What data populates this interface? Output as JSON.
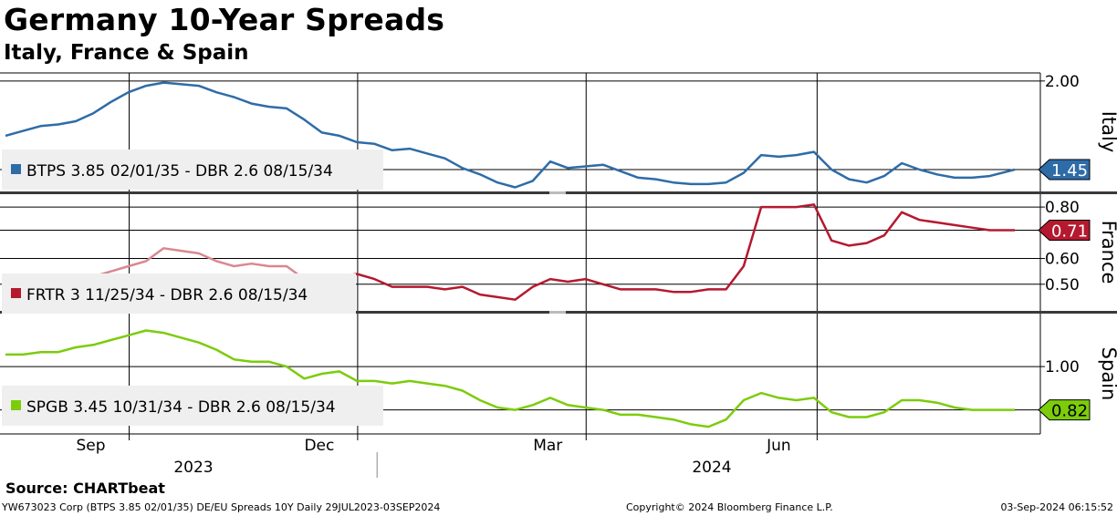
{
  "header": {
    "title": "Germany 10-Year Spreads",
    "subtitle": "Italy, France & Spain"
  },
  "footer": {
    "source": "Source: CHARTbeat",
    "left": "YW673023 Corp (BTPS 3.85 02/01/35) DE/EU Spreads 10Y  Daily 29JUL2023-03SEP2024",
    "middle": "Copyright© 2024 Bloomberg Finance L.P.",
    "right": "03-Sep-2024 06:15:52"
  },
  "colors": {
    "italy": "#2e6ca8",
    "france": "#b5192f",
    "france_faded": "#d98890",
    "spain": "#7ccc0c"
  },
  "chart_data": [
    {
      "type": "line",
      "panel": "Italy",
      "axis_label": "Italy",
      "legend": "BTPS 3.85 02/01/35 - DBR 2.6 08/15/34",
      "last_value_label": "1.45",
      "yticks": [
        "2.00"
      ],
      "ylim": [
        1.32,
        2.05
      ],
      "x": [
        "2023-07-29",
        "2023-08-05",
        "2023-08-12",
        "2023-08-19",
        "2023-08-26",
        "2023-09-02",
        "2023-09-09",
        "2023-09-16",
        "2023-09-23",
        "2023-09-30",
        "2023-10-07",
        "2023-10-14",
        "2023-10-21",
        "2023-10-28",
        "2023-11-04",
        "2023-11-11",
        "2023-11-18",
        "2023-11-25",
        "2023-12-02",
        "2023-12-09",
        "2023-12-16",
        "2023-12-23",
        "2023-12-30",
        "2024-01-06",
        "2024-01-13",
        "2024-01-20",
        "2024-01-27",
        "2024-02-03",
        "2024-02-10",
        "2024-02-17",
        "2024-02-24",
        "2024-03-02",
        "2024-03-09",
        "2024-03-16",
        "2024-03-23",
        "2024-03-30",
        "2024-04-06",
        "2024-04-13",
        "2024-04-20",
        "2024-04-27",
        "2024-05-04",
        "2024-05-11",
        "2024-05-18",
        "2024-05-25",
        "2024-06-01",
        "2024-06-08",
        "2024-06-15",
        "2024-06-22",
        "2024-06-29",
        "2024-07-06",
        "2024-07-13",
        "2024-07-20",
        "2024-07-27",
        "2024-08-03",
        "2024-08-10",
        "2024-08-17",
        "2024-08-24",
        "2024-09-03"
      ],
      "values": [
        1.66,
        1.69,
        1.72,
        1.73,
        1.75,
        1.8,
        1.87,
        1.93,
        1.97,
        1.99,
        1.98,
        1.97,
        1.93,
        1.9,
        1.86,
        1.84,
        1.83,
        1.76,
        1.68,
        1.66,
        1.62,
        1.61,
        1.57,
        1.58,
        1.55,
        1.52,
        1.46,
        1.42,
        1.37,
        1.34,
        1.38,
        1.5,
        1.46,
        1.47,
        1.48,
        1.44,
        1.4,
        1.39,
        1.37,
        1.36,
        1.36,
        1.37,
        1.43,
        1.54,
        1.53,
        1.54,
        1.56,
        1.45,
        1.39,
        1.37,
        1.41,
        1.49,
        1.45,
        1.42,
        1.4,
        1.4,
        1.41,
        1.45
      ]
    },
    {
      "type": "line",
      "panel": "France",
      "axis_label": "France",
      "legend": "FRTR 3 11/25/34 - DBR 2.6 08/15/34",
      "last_value_label": "0.71",
      "yticks": [
        "0.80",
        "0.60",
        "0.50"
      ],
      "ylim": [
        0.4,
        0.85
      ],
      "x": [
        "2023-07-29",
        "2023-08-05",
        "2023-08-12",
        "2023-08-19",
        "2023-08-26",
        "2023-09-02",
        "2023-09-09",
        "2023-09-16",
        "2023-09-23",
        "2023-09-30",
        "2023-10-07",
        "2023-10-14",
        "2023-10-21",
        "2023-10-28",
        "2023-11-04",
        "2023-11-11",
        "2023-11-18",
        "2023-11-25",
        "2023-12-02",
        "2023-12-09",
        "2023-12-16",
        "2023-12-23",
        "2023-12-30",
        "2024-01-06",
        "2024-01-13",
        "2024-01-20",
        "2024-01-27",
        "2024-02-03",
        "2024-02-10",
        "2024-02-17",
        "2024-02-24",
        "2024-03-02",
        "2024-03-09",
        "2024-03-16",
        "2024-03-23",
        "2024-03-30",
        "2024-04-06",
        "2024-04-13",
        "2024-04-20",
        "2024-04-27",
        "2024-05-04",
        "2024-05-11",
        "2024-05-18",
        "2024-05-25",
        "2024-06-01",
        "2024-06-08",
        "2024-06-15",
        "2024-06-22",
        "2024-06-29",
        "2024-07-06",
        "2024-07-13",
        "2024-07-20",
        "2024-07-27",
        "2024-08-03",
        "2024-08-10",
        "2024-08-17",
        "2024-08-24",
        "2024-09-03"
      ],
      "values": [
        0.53,
        0.52,
        0.52,
        0.52,
        0.52,
        0.53,
        0.55,
        0.57,
        0.59,
        0.64,
        0.63,
        0.62,
        0.59,
        0.57,
        0.58,
        0.57,
        0.57,
        0.52,
        0.52,
        0.53,
        0.54,
        0.52,
        0.49,
        0.49,
        0.49,
        0.48,
        0.49,
        0.46,
        0.45,
        0.44,
        0.49,
        0.52,
        0.51,
        0.52,
        0.5,
        0.48,
        0.48,
        0.48,
        0.47,
        0.47,
        0.48,
        0.48,
        0.57,
        0.8,
        0.8,
        0.8,
        0.81,
        0.67,
        0.65,
        0.66,
        0.69,
        0.78,
        0.75,
        0.74,
        0.73,
        0.72,
        0.71,
        0.71
      ]
    },
    {
      "type": "line",
      "panel": "Spain",
      "axis_label": "Spain",
      "legend": "SPGB 3.45 10/31/34 - DBR 2.6 08/15/34",
      "last_value_label": "0.82",
      "yticks": [
        "1.00"
      ],
      "ylim": [
        0.72,
        1.22
      ],
      "x": [
        "2023-07-29",
        "2023-08-05",
        "2023-08-12",
        "2023-08-19",
        "2023-08-26",
        "2023-09-02",
        "2023-09-09",
        "2023-09-16",
        "2023-09-23",
        "2023-09-30",
        "2023-10-07",
        "2023-10-14",
        "2023-10-21",
        "2023-10-28",
        "2023-11-04",
        "2023-11-11",
        "2023-11-18",
        "2023-11-25",
        "2023-12-02",
        "2023-12-09",
        "2023-12-16",
        "2023-12-23",
        "2023-12-30",
        "2024-01-06",
        "2024-01-13",
        "2024-01-20",
        "2024-01-27",
        "2024-02-03",
        "2024-02-10",
        "2024-02-17",
        "2024-02-24",
        "2024-03-02",
        "2024-03-09",
        "2024-03-16",
        "2024-03-23",
        "2024-03-30",
        "2024-04-06",
        "2024-04-13",
        "2024-04-20",
        "2024-04-27",
        "2024-05-04",
        "2024-05-11",
        "2024-05-18",
        "2024-05-25",
        "2024-06-01",
        "2024-06-08",
        "2024-06-15",
        "2024-06-22",
        "2024-06-29",
        "2024-07-06",
        "2024-07-13",
        "2024-07-20",
        "2024-07-27",
        "2024-08-03",
        "2024-08-10",
        "2024-08-17",
        "2024-08-24",
        "2024-09-03"
      ],
      "values": [
        1.05,
        1.05,
        1.06,
        1.06,
        1.08,
        1.09,
        1.11,
        1.13,
        1.15,
        1.14,
        1.12,
        1.1,
        1.07,
        1.03,
        1.02,
        1.02,
        1.0,
        0.95,
        0.97,
        0.98,
        0.94,
        0.94,
        0.93,
        0.94,
        0.93,
        0.92,
        0.9,
        0.86,
        0.83,
        0.82,
        0.84,
        0.87,
        0.84,
        0.83,
        0.82,
        0.8,
        0.8,
        0.79,
        0.78,
        0.76,
        0.75,
        0.78,
        0.86,
        0.89,
        0.87,
        0.86,
        0.87,
        0.81,
        0.79,
        0.79,
        0.81,
        0.86,
        0.86,
        0.85,
        0.83,
        0.82,
        0.82,
        0.82
      ]
    }
  ],
  "x_axis": {
    "month_labels": [
      {
        "label": "Sep",
        "date": "2023-09-01"
      },
      {
        "label": "Dec",
        "date": "2023-12-01"
      },
      {
        "label": "Mar",
        "date": "2024-03-01"
      },
      {
        "label": "Jun",
        "date": "2024-06-01"
      }
    ],
    "year_labels": [
      {
        "label": "2023",
        "from": "2023-07-29",
        "to": "2023-12-31"
      },
      {
        "label": "2024",
        "from": "2024-01-01",
        "to": "2024-09-03"
      }
    ],
    "start": "2023-07-29",
    "end": "2024-09-03"
  }
}
